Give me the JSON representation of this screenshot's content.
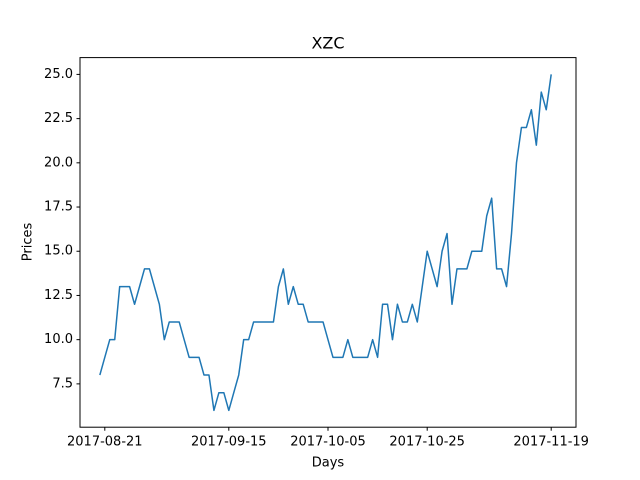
{
  "chart_data": {
    "type": "line",
    "title": "XZC",
    "x_label": "Days",
    "y_label": "Prices",
    "x": [
      "2017-08-20",
      "2017-08-21",
      "2017-08-22",
      "2017-08-23",
      "2017-08-24",
      "2017-08-25",
      "2017-08-26",
      "2017-08-27",
      "2017-08-28",
      "2017-08-29",
      "2017-08-30",
      "2017-08-31",
      "2017-09-01",
      "2017-09-02",
      "2017-09-03",
      "2017-09-04",
      "2017-09-05",
      "2017-09-06",
      "2017-09-07",
      "2017-09-08",
      "2017-09-09",
      "2017-09-10",
      "2017-09-11",
      "2017-09-12",
      "2017-09-13",
      "2017-09-14",
      "2017-09-15",
      "2017-09-16",
      "2017-09-17",
      "2017-09-18",
      "2017-09-19",
      "2017-09-20",
      "2017-09-21",
      "2017-09-22",
      "2017-09-23",
      "2017-09-24",
      "2017-09-25",
      "2017-09-26",
      "2017-09-27",
      "2017-09-28",
      "2017-09-29",
      "2017-09-30",
      "2017-10-01",
      "2017-10-02",
      "2017-10-03",
      "2017-10-04",
      "2017-10-05",
      "2017-10-06",
      "2017-10-07",
      "2017-10-08",
      "2017-10-09",
      "2017-10-10",
      "2017-10-11",
      "2017-10-12",
      "2017-10-13",
      "2017-10-14",
      "2017-10-15",
      "2017-10-16",
      "2017-10-17",
      "2017-10-18",
      "2017-10-19",
      "2017-10-20",
      "2017-10-21",
      "2017-10-22",
      "2017-10-23",
      "2017-10-24",
      "2017-10-25",
      "2017-10-26",
      "2017-10-27",
      "2017-10-28",
      "2017-10-29",
      "2017-10-30",
      "2017-10-31",
      "2017-11-01",
      "2017-11-02",
      "2017-11-03",
      "2017-11-04",
      "2017-11-05",
      "2017-11-06",
      "2017-11-07",
      "2017-11-08",
      "2017-11-09",
      "2017-11-10",
      "2017-11-11",
      "2017-11-12",
      "2017-11-13",
      "2017-11-14",
      "2017-11-15",
      "2017-11-16",
      "2017-11-17",
      "2017-11-18",
      "2017-11-19"
    ],
    "series": [
      {
        "color": "#1f77b4",
        "values": [
          8,
          9,
          10,
          10,
          13,
          13,
          13,
          12,
          13,
          14,
          14,
          13,
          12,
          10,
          11,
          11,
          11,
          10,
          9,
          9,
          9,
          8,
          8,
          6,
          7,
          7,
          6,
          7,
          8,
          10,
          10,
          11,
          11,
          11,
          11,
          11,
          13,
          14,
          12,
          13,
          12,
          12,
          11,
          11,
          11,
          11,
          10,
          9,
          9,
          9,
          10,
          9,
          9,
          9,
          9,
          10,
          9,
          12,
          12,
          10,
          12,
          11,
          11,
          12,
          11,
          13,
          15,
          14,
          13,
          15,
          16,
          12,
          14,
          14,
          14,
          15,
          15,
          15,
          17,
          18,
          14,
          14,
          13,
          16,
          20,
          22,
          22,
          23,
          21,
          24,
          23,
          25
        ]
      }
    ],
    "xlim": [
      "2017-08-16",
      "2017-11-24"
    ],
    "xticks": [
      "2017-08-21",
      "2017-09-15",
      "2017-10-05",
      "2017-10-25",
      "2017-11-19"
    ],
    "ylim": [
      5.05,
      25.95
    ],
    "yticks": [
      7.5,
      {
        "value": 10,
        "label": "10.0"
      },
      12.5,
      {
        "value": 15,
        "label": "15.0"
      },
      17.5,
      {
        "value": 20,
        "label": "20.0"
      },
      22.5,
      {
        "value": 25,
        "label": "25.0"
      }
    ],
    "grid": false
  }
}
